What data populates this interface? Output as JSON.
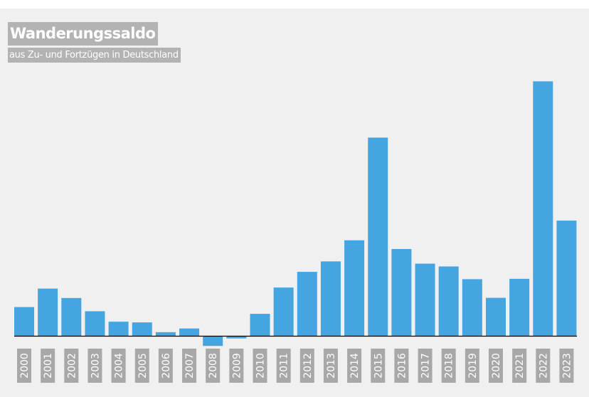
{
  "chart_data": {
    "type": "bar",
    "title": "Wanderungssaldo",
    "subtitle": "aus Zu- und Fortzügen in Deutschland",
    "categories": [
      "2000",
      "2001",
      "2002",
      "2003",
      "2004",
      "2005",
      "2006",
      "2007",
      "2008",
      "2009",
      "2010",
      "2011",
      "2012",
      "2013",
      "2014",
      "2015",
      "2016",
      "2017",
      "2018",
      "2019",
      "2020",
      "2021",
      "2022",
      "2023"
    ],
    "values": [
      167,
      273,
      219,
      143,
      83,
      79,
      23,
      44,
      -56,
      -13,
      128,
      279,
      369,
      429,
      550,
      1139,
      500,
      416,
      400,
      327,
      220,
      329,
      1462,
      663
    ],
    "ylim": [
      -70,
      1540
    ],
    "bar_color": "#45a5e0",
    "axis_color": "#000000",
    "grid": false,
    "legend": "none"
  }
}
